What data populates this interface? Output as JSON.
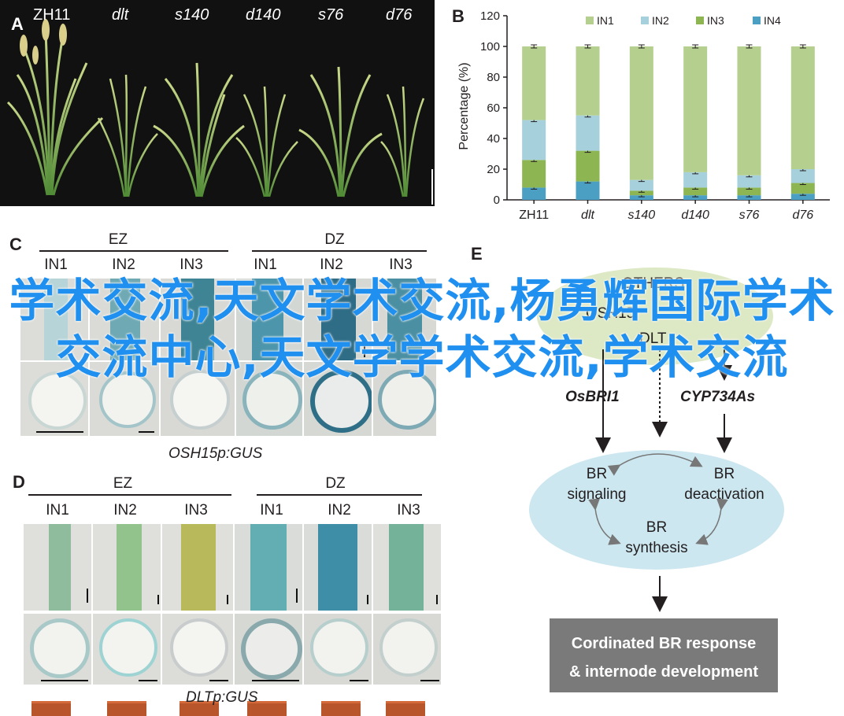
{
  "panels": {
    "a": "A",
    "b": "B",
    "c": "C",
    "d": "D",
    "e": "E"
  },
  "panelA": {
    "genotypes": [
      "ZH11",
      "dlt",
      "s140",
      "d140",
      "s76",
      "d76"
    ]
  },
  "chart_data": {
    "type": "bar",
    "stacked": true,
    "categories": [
      "ZH11",
      "dlt",
      "s140",
      "d140",
      "s76",
      "d76"
    ],
    "ylabel": "Percentage (%)",
    "ylim": [
      0,
      120
    ],
    "yticks": [
      "0",
      "20",
      "40",
      "60",
      "80",
      "100",
      "120"
    ],
    "legend_position": "top",
    "series": [
      {
        "name": "IN4",
        "color": "#4a9fc2",
        "values": [
          8,
          12,
          3,
          3,
          3,
          4
        ]
      },
      {
        "name": "IN3",
        "color": "#8db652",
        "values": [
          18,
          20,
          3,
          5,
          5,
          7
        ]
      },
      {
        "name": "IN2",
        "color": "#a6d0dc",
        "values": [
          26,
          23,
          7,
          10,
          8,
          9
        ]
      },
      {
        "name": "IN1",
        "color": "#b5cf8e",
        "values": [
          48,
          45,
          87,
          82,
          84,
          80
        ]
      }
    ],
    "top_labels": [
      {
        "color": "#b5cf8e",
        "text": "IN1"
      },
      {
        "color": "#a6d0dc",
        "text": "IN2"
      },
      {
        "color": "#8db652",
        "text": "IN3"
      },
      {
        "color": "#4a9fc2",
        "text": "IN4"
      }
    ]
  },
  "panelC": {
    "group1": "EZ",
    "group2": "DZ",
    "cols": [
      "IN1",
      "IN2",
      "IN3",
      "IN1",
      "IN2",
      "IN3"
    ],
    "caption": "OSH15p:GUS"
  },
  "panelD": {
    "group1": "EZ",
    "group2": "DZ",
    "cols": [
      "IN1",
      "IN2",
      "IN3",
      "IN1",
      "IN2",
      "IN3"
    ],
    "caption": "DLTp:GUS"
  },
  "panelE": {
    "others": "OTHERS",
    "osh15": "OSH15",
    "dlt": "DLT",
    "osbri1": "OsBRI1",
    "cyp": "CYP734As",
    "br_signaling_1": "BR",
    "br_signaling_2": "signaling",
    "br_deact_1": "BR",
    "br_deact_2": "deactivation",
    "br_synth_1": "BR",
    "br_synth_2": "synthesis",
    "response_1": "Cordinated BR response",
    "response_2": "& internode development"
  },
  "overlay_text": "学术交流,天文学术交流,杨勇辉国际学术交流中心,天文学学术交流,学术交流",
  "colors": {
    "gus_blue": "#3b9ab0",
    "gus_light": "#bfe0e4",
    "ellipse_green": "#dde8c4",
    "ellipse_blue": "#cce7f0",
    "response_box": "#7a7a7a",
    "overlay_blue": "#1f8ff0"
  }
}
